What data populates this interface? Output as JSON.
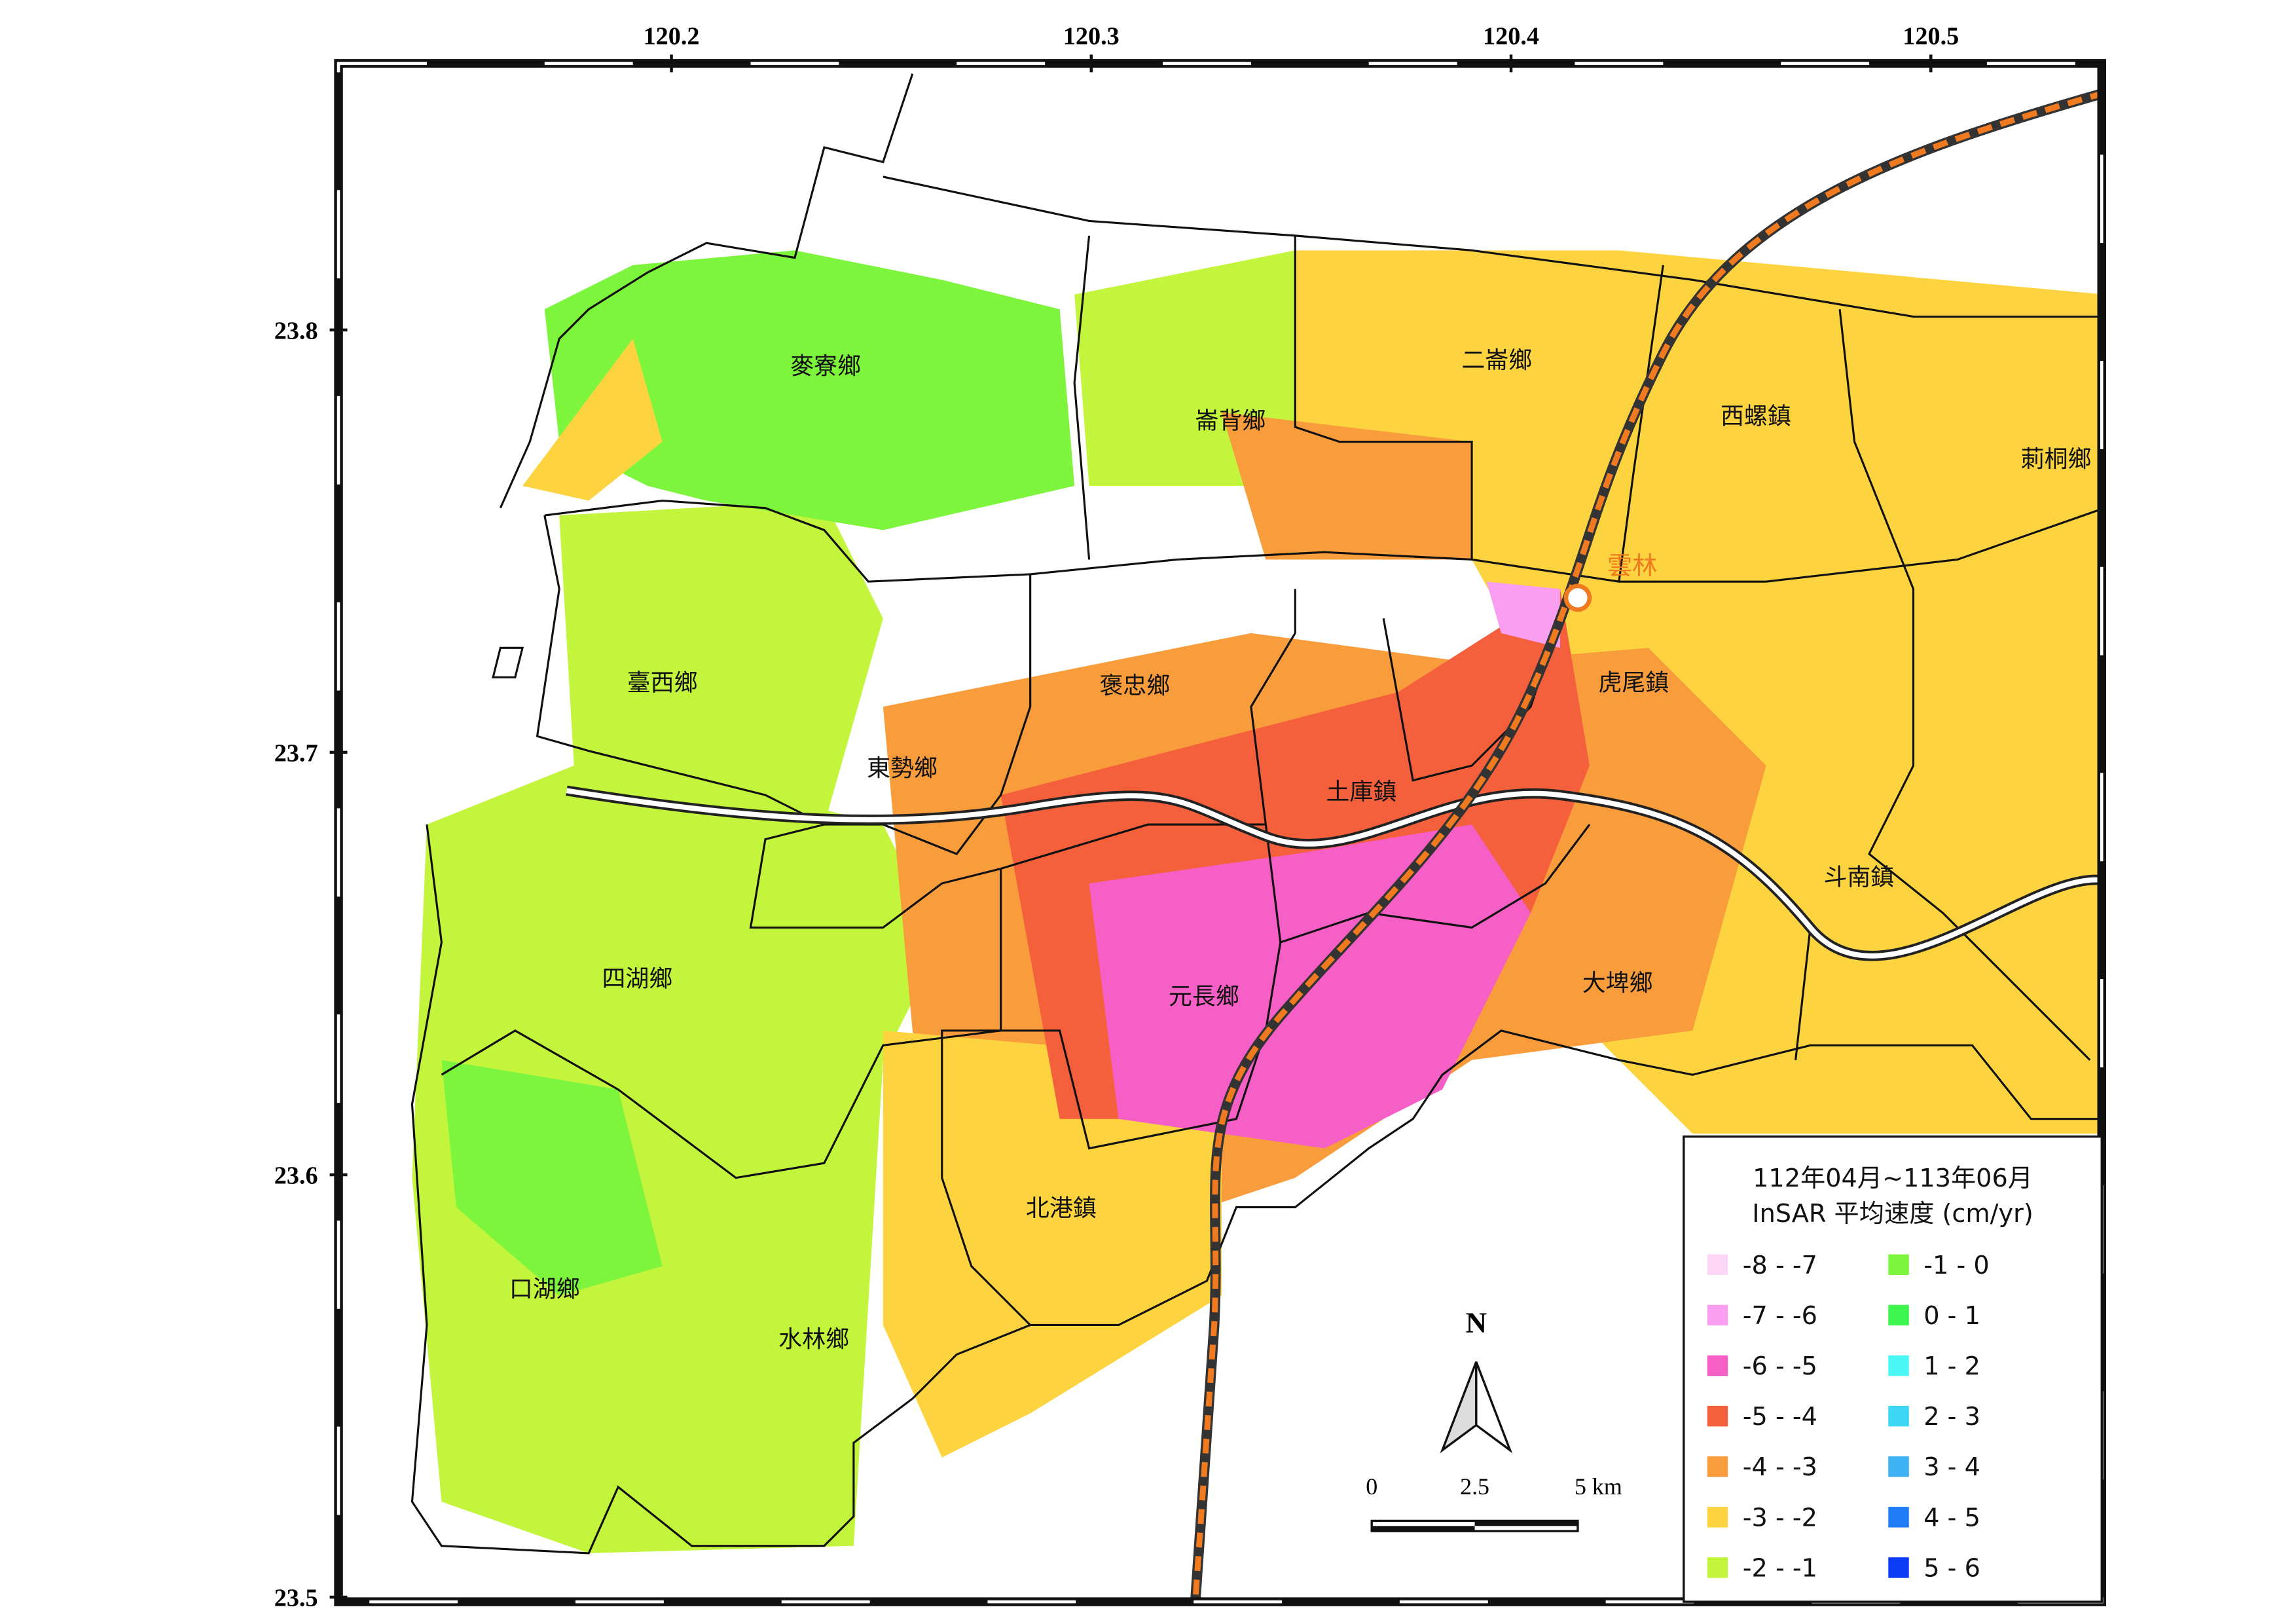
{
  "map": {
    "xlim": [
      120.1207,
      120.5407
    ],
    "ylim": [
      23.4989,
      23.8631
    ],
    "xticks": [
      120.2,
      120.3,
      120.4,
      120.5
    ],
    "yticks": [
      23.8,
      23.7,
      23.6,
      23.5
    ],
    "towns": [
      "麥寮鄉",
      "崙背鄉",
      "二崙鄉",
      "西螺鎮",
      "莿桐鄉",
      "臺西鄉",
      "褒忠鄉",
      "虎尾鎮",
      "東勢鄉",
      "土庫鎮",
      "斗南鎮",
      "四湖鄉",
      "元長鄉",
      "大埤鄉",
      "北港鎮",
      "口湖鄉",
      "水林鄉"
    ],
    "station": "雲林",
    "north": "N",
    "scale_labels": [
      "0",
      "2.5",
      "5 km"
    ],
    "legend": {
      "title": [
        "112年04月~113年06月",
        "InSAR 平均速度 (cm/yr)"
      ],
      "entries": [
        {
          "label": "-8 - -7",
          "color": "#fcd6f7"
        },
        {
          "label": "-7 - -6",
          "color": "#f99ef0"
        },
        {
          "label": "-6 - -5",
          "color": "#f65fc5"
        },
        {
          "label": "-5 - -4",
          "color": "#f5603c"
        },
        {
          "label": "-4 - -3",
          "color": "#f99d3c"
        },
        {
          "label": "-3 - -2",
          "color": "#fdd43f"
        },
        {
          "label": "-2 - -1",
          "color": "#c2f53b"
        },
        {
          "label": "-1 - 0",
          "color": "#7cf53c"
        },
        {
          "label": "0 - 1",
          "color": "#3df54c"
        },
        {
          "label": "1 - 2",
          "color": "#4af6f6"
        },
        {
          "label": "2 - 3",
          "color": "#3dd7f5"
        },
        {
          "label": "3 - 4",
          "color": "#3eb2f2"
        },
        {
          "label": "4 - 5",
          "color": "#1f7cf5"
        },
        {
          "label": "5 - 6",
          "color": "#0a3cf5"
        }
      ]
    }
  }
}
